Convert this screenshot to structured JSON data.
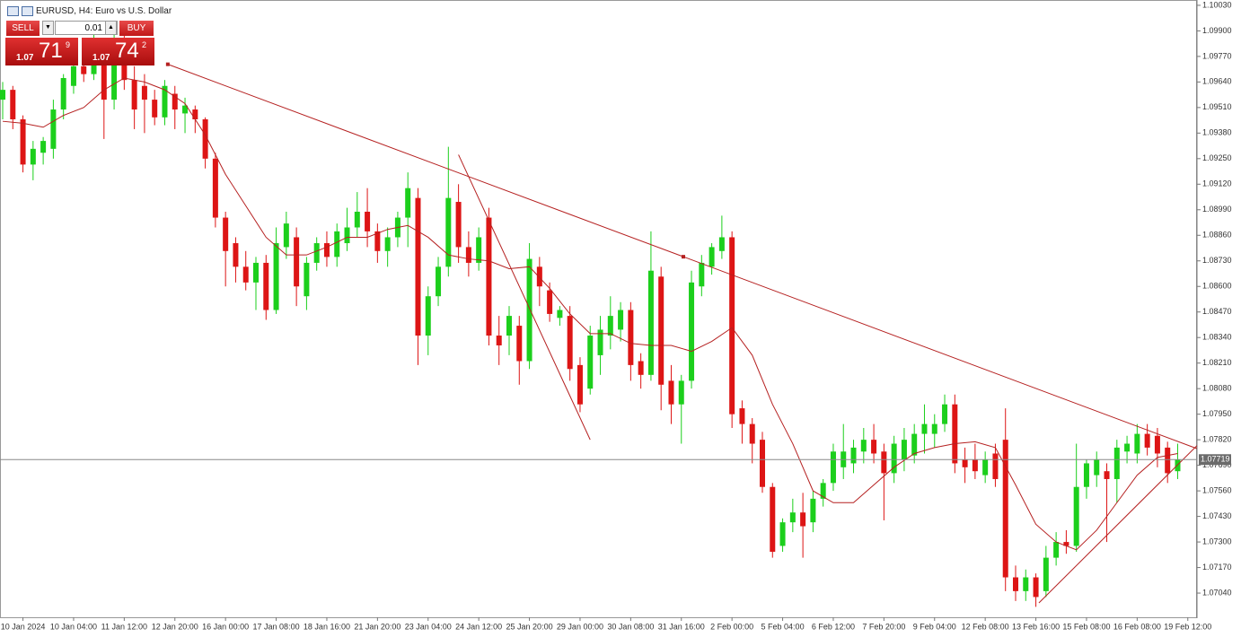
{
  "toolbar": {
    "title": "EURUSD, H4:  Euro vs U.S. Dollar"
  },
  "trade_panel": {
    "sell": "SELL",
    "buy": "BUY",
    "lot": "0.01",
    "bid": {
      "prefix": "1.07",
      "big": "71",
      "pip": "9"
    },
    "ask": {
      "prefix": "1.07",
      "big": "74",
      "pip": "2"
    }
  },
  "chart_data": {
    "type": "candlestick",
    "up_color": "#1ccf1c",
    "down_color": "#dd1515",
    "line_color": "#b52020",
    "ylim": [
      1.06917,
      1.10057
    ],
    "yticks": [
      {
        "value": 1.1003,
        "label": "1.10030"
      },
      {
        "value": 1.099,
        "label": "1.09900"
      },
      {
        "value": 1.0977,
        "label": "1.09770"
      },
      {
        "value": 1.0964,
        "label": "1.09640"
      },
      {
        "value": 1.0951,
        "label": "1.09510"
      },
      {
        "value": 1.0938,
        "label": "1.09380"
      },
      {
        "value": 1.0925,
        "label": "1.09250"
      },
      {
        "value": 1.0912,
        "label": "1.09120"
      },
      {
        "value": 1.0899,
        "label": "1.08990"
      },
      {
        "value": 1.0886,
        "label": "1.08860"
      },
      {
        "value": 1.0873,
        "label": "1.08730"
      },
      {
        "value": 1.086,
        "label": "1.08600"
      },
      {
        "value": 1.0847,
        "label": "1.08470"
      },
      {
        "value": 1.0834,
        "label": "1.08340"
      },
      {
        "value": 1.0821,
        "label": "1.08210"
      },
      {
        "value": 1.0808,
        "label": "1.08080"
      },
      {
        "value": 1.0795,
        "label": "1.07950"
      },
      {
        "value": 1.0782,
        "label": "1.07820"
      },
      {
        "value": 1.0769,
        "label": "1.07690"
      },
      {
        "value": 1.0756,
        "label": "1.07560"
      },
      {
        "value": 1.0743,
        "label": "1.07430"
      },
      {
        "value": 1.073,
        "label": "1.07300"
      },
      {
        "value": 1.0717,
        "label": "1.07170"
      },
      {
        "value": 1.0704,
        "label": "1.07040"
      }
    ],
    "xticks": [
      {
        "value": 2,
        "label": "10 Jan 2024"
      },
      {
        "value": 7,
        "label": "10 Jan 04:00"
      },
      {
        "value": 12,
        "label": "11 Jan 12:00"
      },
      {
        "value": 17,
        "label": "12 Jan 20:00"
      },
      {
        "value": 22,
        "label": "16 Jan 00:00"
      },
      {
        "value": 27,
        "label": "17 Jan 08:00"
      },
      {
        "value": 32,
        "label": "18 Jan 16:00"
      },
      {
        "value": 37,
        "label": "21 Jan 20:00"
      },
      {
        "value": 42,
        "label": "23 Jan 04:00"
      },
      {
        "value": 47,
        "label": "24 Jan 12:00"
      },
      {
        "value": 52,
        "label": "25 Jan 20:00"
      },
      {
        "value": 57,
        "label": "29 Jan 00:00"
      },
      {
        "value": 62,
        "label": "30 Jan 08:00"
      },
      {
        "value": 67,
        "label": "31 Jan 16:00"
      },
      {
        "value": 72,
        "label": "2 Feb 00:00"
      },
      {
        "value": 77,
        "label": "5 Feb 04:00"
      },
      {
        "value": 82,
        "label": "6 Feb 12:00"
      },
      {
        "value": 87,
        "label": "7 Feb 20:00"
      },
      {
        "value": 92,
        "label": "9 Feb 04:00"
      },
      {
        "value": 97,
        "label": "12 Feb 08:00"
      },
      {
        "value": 102,
        "label": "13 Feb 16:00"
      },
      {
        "value": 107,
        "label": "15 Feb 08:00"
      },
      {
        "value": 112,
        "label": "16 Feb 08:00"
      },
      {
        "value": 117,
        "label": "19 Feb 12:00"
      }
    ],
    "current": {
      "value": 1.07719,
      "label": "1.07719"
    },
    "ohlc": [
      [
        1.0955,
        1.0964,
        1.0945,
        1.096
      ],
      [
        1.096,
        1.0962,
        1.094,
        1.0945
      ],
      [
        1.0945,
        1.0947,
        1.0918,
        1.0922
      ],
      [
        1.0922,
        1.0934,
        1.0914,
        1.093
      ],
      [
        1.0928,
        1.0936,
        1.0922,
        1.0934
      ],
      [
        1.093,
        1.0955,
        1.0925,
        1.095
      ],
      [
        1.095,
        1.0968,
        1.0945,
        1.0966
      ],
      [
        1.0962,
        1.0976,
        1.0958,
        1.0972
      ],
      [
        1.0972,
        1.098,
        1.0964,
        1.0968
      ],
      [
        1.0968,
        1.099,
        1.0965,
        1.098
      ],
      [
        1.0978,
        1.0985,
        1.0935,
        1.0955
      ],
      [
        1.0955,
        1.099,
        1.095,
        1.0975
      ],
      [
        1.0975,
        1.0995,
        1.096,
        1.0965
      ],
      [
        1.0965,
        1.0972,
        1.094,
        1.095
      ],
      [
        1.0962,
        1.0968,
        1.0938,
        1.0955
      ],
      [
        1.0955,
        1.096,
        1.0942,
        1.0946
      ],
      [
        1.0946,
        1.0965,
        1.0942,
        1.0962
      ],
      [
        1.0958,
        1.0962,
        1.094,
        1.095
      ],
      [
        1.0948,
        1.0956,
        1.0938,
        1.0952
      ],
      [
        1.095,
        1.0952,
        1.0938,
        1.0945
      ],
      [
        1.0945,
        1.0946,
        1.092,
        1.0925
      ],
      [
        1.0925,
        1.0928,
        1.089,
        1.0895
      ],
      [
        1.0895,
        1.0898,
        1.086,
        1.0878
      ],
      [
        1.0882,
        1.0885,
        1.0862,
        1.087
      ],
      [
        1.087,
        1.0878,
        1.0858,
        1.0862
      ],
      [
        1.0862,
        1.0875,
        1.0848,
        1.0872
      ],
      [
        1.0872,
        1.0876,
        1.0843,
        1.0848
      ],
      [
        1.0848,
        1.089,
        1.0846,
        1.0882
      ],
      [
        1.088,
        1.0898,
        1.0874,
        1.0892
      ],
      [
        1.0885,
        1.089,
        1.085,
        1.086
      ],
      [
        1.0855,
        1.0875,
        1.0848,
        1.0872
      ],
      [
        1.0872,
        1.0885,
        1.0868,
        1.0882
      ],
      [
        1.0882,
        1.0888,
        1.087,
        1.0875
      ],
      [
        1.0875,
        1.0892,
        1.087,
        1.0888
      ],
      [
        1.0882,
        1.09,
        1.0878,
        1.089
      ],
      [
        1.089,
        1.0908,
        1.0885,
        1.0898
      ],
      [
        1.0898,
        1.091,
        1.088,
        1.0888
      ],
      [
        1.0888,
        1.0892,
        1.0872,
        1.0878
      ],
      [
        1.0878,
        1.089,
        1.087,
        1.0885
      ],
      [
        1.0885,
        1.0898,
        1.088,
        1.0895
      ],
      [
        1.0895,
        1.0918,
        1.088,
        1.091
      ],
      [
        1.0905,
        1.091,
        1.082,
        1.0835
      ],
      [
        1.0835,
        1.086,
        1.0825,
        1.0855
      ],
      [
        1.0855,
        1.0875,
        1.085,
        1.087
      ],
      [
        1.087,
        1.0931,
        1.0865,
        1.0905
      ],
      [
        1.0903,
        1.0912,
        1.0872,
        1.088
      ],
      [
        1.088,
        1.0888,
        1.0865,
        1.0872
      ],
      [
        1.0872,
        1.089,
        1.0868,
        1.0885
      ],
      [
        1.0895,
        1.09,
        1.083,
        1.0835
      ],
      [
        1.0835,
        1.0845,
        1.082,
        1.083
      ],
      [
        1.0835,
        1.085,
        1.0825,
        1.0845
      ],
      [
        1.084,
        1.0845,
        1.081,
        1.0822
      ],
      [
        1.0822,
        1.0882,
        1.0818,
        1.0874
      ],
      [
        1.087,
        1.0875,
        1.085,
        1.086
      ],
      [
        1.0858,
        1.0862,
        1.0842,
        1.0846
      ],
      [
        1.0844,
        1.085,
        1.084,
        1.0848
      ],
      [
        1.0845,
        1.085,
        1.0812,
        1.0818
      ],
      [
        1.082,
        1.0824,
        1.0796,
        1.08
      ],
      [
        1.0808,
        1.084,
        1.0805,
        1.0835
      ],
      [
        1.0825,
        1.0845,
        1.0815,
        1.0838
      ],
      [
        1.0835,
        1.0855,
        1.0828,
        1.0845
      ],
      [
        1.0838,
        1.0852,
        1.0832,
        1.0848
      ],
      [
        1.0848,
        1.0852,
        1.0812,
        1.082
      ],
      [
        1.0822,
        1.0826,
        1.0808,
        1.0815
      ],
      [
        1.0815,
        1.0888,
        1.0812,
        1.0868
      ],
      [
        1.0865,
        1.087,
        1.0797,
        1.081
      ],
      [
        1.0812,
        1.082,
        1.079,
        1.08
      ],
      [
        1.08,
        1.0815,
        1.078,
        1.0812
      ],
      [
        1.0812,
        1.0868,
        1.0808,
        1.0862
      ],
      [
        1.086,
        1.0876,
        1.0855,
        1.0872
      ],
      [
        1.087,
        1.0882,
        1.0866,
        1.088
      ],
      [
        1.0878,
        1.0896,
        1.0874,
        1.0885
      ],
      [
        1.0885,
        1.0888,
        1.0788,
        1.0795
      ],
      [
        1.0798,
        1.0802,
        1.078,
        1.079
      ],
      [
        1.079,
        1.0793,
        1.077,
        1.078
      ],
      [
        1.0782,
        1.0786,
        1.0755,
        1.0758
      ],
      [
        1.0758,
        1.076,
        1.0722,
        1.0725
      ],
      [
        1.0728,
        1.0742,
        1.0725,
        1.074
      ],
      [
        1.074,
        1.0752,
        1.0735,
        1.0745
      ],
      [
        1.0745,
        1.0755,
        1.0722,
        1.0738
      ],
      [
        1.074,
        1.0756,
        1.0735,
        1.0752
      ],
      [
        1.0752,
        1.0762,
        1.0748,
        1.076
      ],
      [
        1.076,
        1.078,
        1.0756,
        1.0776
      ],
      [
        1.0768,
        1.079,
        1.0762,
        1.0776
      ],
      [
        1.077,
        1.0782,
        1.0765,
        1.0778
      ],
      [
        1.0776,
        1.0788,
        1.077,
        1.0782
      ],
      [
        1.0782,
        1.079,
        1.077,
        1.0775
      ],
      [
        1.0776,
        1.078,
        1.0741,
        1.0765
      ],
      [
        1.0765,
        1.0784,
        1.076,
        1.078
      ],
      [
        1.0772,
        1.0788,
        1.0766,
        1.0782
      ],
      [
        1.0774,
        1.079,
        1.077,
        1.0785
      ],
      [
        1.0785,
        1.08,
        1.0775,
        1.079
      ],
      [
        1.0785,
        1.0795,
        1.0778,
        1.079
      ],
      [
        1.079,
        1.0805,
        1.0786,
        1.08
      ],
      [
        1.08,
        1.0805,
        1.0765,
        1.077
      ],
      [
        1.0772,
        1.0778,
        1.076,
        1.0768
      ],
      [
        1.0772,
        1.078,
        1.0762,
        1.0766
      ],
      [
        1.0764,
        1.0776,
        1.076,
        1.0772
      ],
      [
        1.0775,
        1.078,
        1.0758,
        1.0762
      ],
      [
        1.0782,
        1.0798,
        1.0705,
        1.0712
      ],
      [
        1.0712,
        1.0718,
        1.07,
        1.0705
      ],
      [
        1.0705,
        1.0716,
        1.07,
        1.0712
      ],
      [
        1.0712,
        1.0714,
        1.0697,
        1.0702
      ],
      [
        1.0705,
        1.0728,
        1.0702,
        1.0722
      ],
      [
        1.0722,
        1.0735,
        1.0718,
        1.073
      ],
      [
        1.073,
        1.0736,
        1.0724,
        1.0728
      ],
      [
        1.0728,
        1.078,
        1.0725,
        1.0758
      ],
      [
        1.0758,
        1.0772,
        1.0752,
        1.077
      ],
      [
        1.0764,
        1.0776,
        1.0758,
        1.0772
      ],
      [
        1.0766,
        1.077,
        1.073,
        1.0762
      ],
      [
        1.0762,
        1.0782,
        1.075,
        1.0778
      ],
      [
        1.0776,
        1.0784,
        1.077,
        1.078
      ],
      [
        1.0775,
        1.079,
        1.077,
        1.0785
      ],
      [
        1.0785,
        1.079,
        1.0774,
        1.0778
      ],
      [
        1.0784,
        1.0788,
        1.0768,
        1.0775
      ],
      [
        1.0778,
        1.0781,
        1.076,
        1.0765
      ],
      [
        1.0766,
        1.078,
        1.0762,
        1.0772
      ]
    ],
    "ma": {
      "x": [
        0,
        2,
        4,
        6,
        8,
        10,
        12,
        14,
        16,
        18,
        20,
        22,
        24,
        26,
        28,
        30,
        32,
        34,
        36,
        38,
        40,
        42,
        44,
        46,
        48,
        50,
        52,
        54,
        56,
        58,
        60,
        62,
        64,
        66,
        68,
        70,
        72,
        74,
        76,
        78,
        80,
        82,
        84,
        86,
        88,
        90,
        92,
        94,
        96,
        98,
        100,
        102,
        104,
        106,
        108,
        110,
        112,
        114,
        116
      ],
      "values": [
        1.0944,
        1.0943,
        1.0941,
        1.0947,
        1.0951,
        1.096,
        1.0966,
        1.0964,
        1.096,
        1.0953,
        1.0937,
        1.0917,
        1.0901,
        1.0885,
        1.0876,
        1.0876,
        1.088,
        1.0885,
        1.0885,
        1.0889,
        1.0891,
        1.0885,
        1.0876,
        1.0874,
        1.0873,
        1.0869,
        1.087,
        1.0859,
        1.0846,
        1.0836,
        1.0836,
        1.0831,
        1.083,
        1.083,
        1.0827,
        1.0832,
        1.0839,
        1.0825,
        1.08,
        1.078,
        1.0756,
        1.075,
        1.075,
        1.0759,
        1.0768,
        1.0775,
        1.0778,
        1.078,
        1.0781,
        1.0778,
        1.0759,
        1.0739,
        1.073,
        1.0726,
        1.0736,
        1.075,
        1.0764,
        1.0773,
        1.0775
      ]
    },
    "trendlines": [
      {
        "x": [
          16.3,
          67.2,
          117.9
        ],
        "y": [
          1.0973,
          1.08751,
          1.07775
        ]
      },
      {
        "x": [
          45,
          58
        ],
        "y": [
          1.0927,
          1.0782
        ]
      },
      {
        "x": [
          102.3,
          117.9
        ],
        "y": [
          1.0699,
          1.0779
        ]
      }
    ]
  }
}
